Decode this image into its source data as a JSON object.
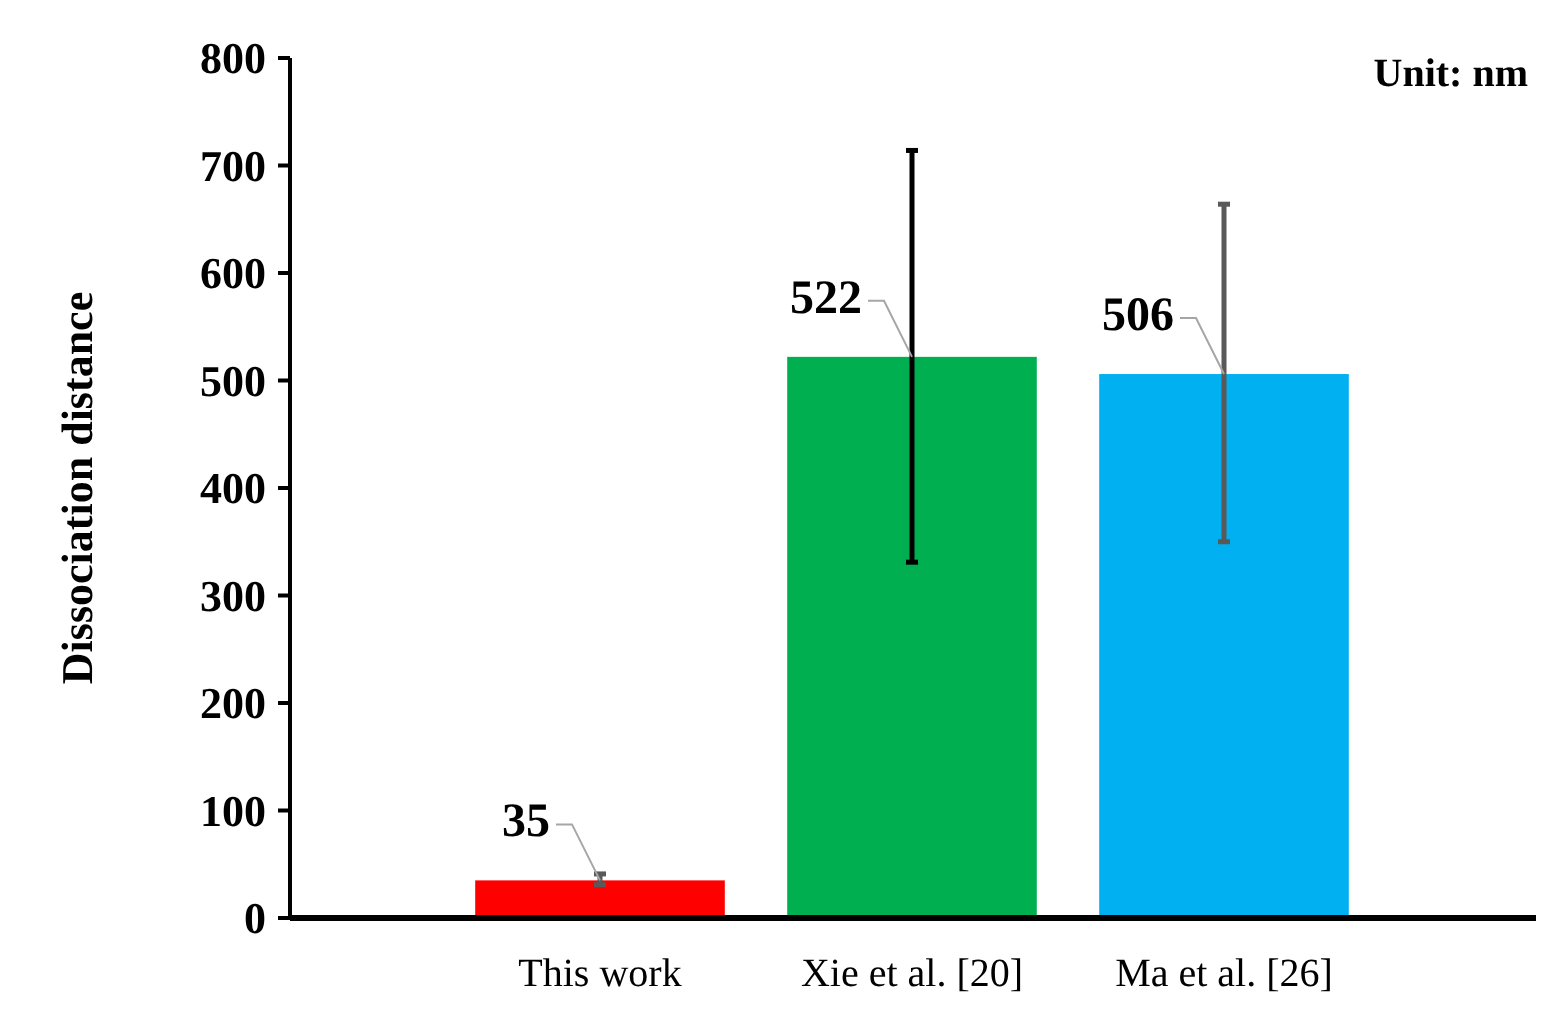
{
  "chart_data": {
    "type": "bar",
    "ylabel": "Dissociation distance",
    "annotations": [
      "Unit: nm"
    ],
    "categories": [
      "This work",
      "Xie et al. [20]",
      "Ma et al. [26]"
    ],
    "values": [
      35,
      522,
      506
    ],
    "colors": [
      "#ff0000",
      "#00b050",
      "#00b0f0"
    ],
    "errors": [
      [
        31,
        41
      ],
      [
        331,
        714
      ],
      [
        350,
        664
      ]
    ],
    "data_labels": true,
    "ylim": [
      0,
      800
    ],
    "yticks": [
      0,
      100,
      200,
      300,
      400,
      500,
      600,
      700,
      800
    ],
    "grid": false
  }
}
